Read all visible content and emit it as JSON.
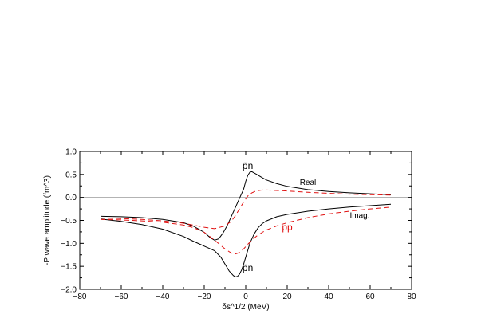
{
  "chart_data": {
    "type": "line",
    "title": "",
    "xlabel": "δs^1/2 (MeV)",
    "ylabel": "-P wave amplitude (fm^3)",
    "xlim": [
      -80,
      80
    ],
    "ylim": [
      -2.0,
      1.0
    ],
    "x_ticks": [
      -80,
      -60,
      -40,
      -20,
      0,
      20,
      40,
      60,
      80
    ],
    "y_ticks": [
      1.0,
      0.5,
      0.0,
      -0.5,
      -1.0,
      -1.5,
      -2.0
    ],
    "x_tick_labels": [
      "−80",
      "−60",
      "−40",
      "−20",
      "0",
      "20",
      "40",
      "60",
      "80"
    ],
    "y_tick_labels": [
      "1.0",
      "0.5",
      "0.0",
      "−0.5",
      "−1.0",
      "−1.5",
      "−2.0"
    ],
    "grid": false,
    "zero_line": true,
    "series": [
      {
        "group": "p̄n",
        "part": "Real",
        "color": "#000000",
        "dash": "solid",
        "x": [
          -70,
          -60,
          -50,
          -40,
          -30,
          -25,
          -20,
          -17,
          -15,
          -13,
          -11,
          -9,
          -7,
          -5,
          -3,
          -1,
          0,
          1,
          2,
          3,
          5,
          8,
          10,
          15,
          20,
          30,
          40,
          50,
          60,
          70
        ],
        "y": [
          -0.41,
          -0.42,
          -0.44,
          -0.48,
          -0.55,
          -0.63,
          -0.76,
          -0.88,
          -0.93,
          -0.9,
          -0.78,
          -0.62,
          -0.42,
          -0.22,
          -0.02,
          0.18,
          0.35,
          0.48,
          0.55,
          0.56,
          0.51,
          0.43,
          0.38,
          0.3,
          0.24,
          0.17,
          0.13,
          0.1,
          0.08,
          0.06
        ]
      },
      {
        "group": "p̄n",
        "part": "Imag.",
        "color": "#000000",
        "dash": "solid",
        "x": [
          -70,
          -60,
          -50,
          -40,
          -30,
          -25,
          -20,
          -15,
          -12,
          -10,
          -8,
          -6,
          -5,
          -4,
          -3,
          -2,
          -1,
          0,
          1,
          2,
          4,
          6,
          8,
          10,
          15,
          20,
          30,
          40,
          50,
          60,
          70
        ],
        "y": [
          -0.47,
          -0.52,
          -0.59,
          -0.69,
          -0.85,
          -0.96,
          -1.06,
          -1.16,
          -1.3,
          -1.45,
          -1.6,
          -1.7,
          -1.73,
          -1.72,
          -1.67,
          -1.58,
          -1.45,
          -1.3,
          -1.15,
          -1.0,
          -0.8,
          -0.66,
          -0.57,
          -0.51,
          -0.42,
          -0.37,
          -0.3,
          -0.25,
          -0.21,
          -0.18,
          -0.15
        ]
      },
      {
        "group": "pp",
        "part": "Real",
        "color": "#e01010",
        "dash": "dashed",
        "x": [
          -70,
          -60,
          -50,
          -40,
          -30,
          -20,
          -15,
          -10,
          -7,
          -5,
          -3,
          -1,
          1,
          3,
          5,
          8,
          10,
          15,
          20,
          30,
          40,
          50,
          60,
          70
        ],
        "y": [
          -0.45,
          -0.46,
          -0.48,
          -0.51,
          -0.56,
          -0.65,
          -0.68,
          -0.62,
          -0.52,
          -0.4,
          -0.25,
          -0.1,
          0.03,
          0.1,
          0.14,
          0.16,
          0.16,
          0.15,
          0.14,
          0.11,
          0.09,
          0.07,
          0.06,
          0.05
        ]
      },
      {
        "group": "pp",
        "part": "Imag.",
        "color": "#e01010",
        "dash": "dashed",
        "x": [
          -70,
          -60,
          -50,
          -40,
          -30,
          -25,
          -20,
          -15,
          -10,
          -7,
          -5,
          -3,
          -1,
          1,
          3,
          5,
          8,
          10,
          15,
          20,
          30,
          40,
          50,
          60,
          70
        ],
        "y": [
          -0.48,
          -0.49,
          -0.51,
          -0.54,
          -0.6,
          -0.66,
          -0.76,
          -0.93,
          -1.12,
          -1.21,
          -1.23,
          -1.2,
          -1.12,
          -1.02,
          -0.93,
          -0.85,
          -0.76,
          -0.71,
          -0.62,
          -0.55,
          -0.44,
          -0.36,
          -0.3,
          -0.25,
          -0.21
        ]
      }
    ],
    "annotations": [
      {
        "text": "p̄n",
        "x": 1,
        "y": 0.62,
        "color": "#000000"
      },
      {
        "text": "Real",
        "x": 30,
        "y": 0.27,
        "color": "#000000"
      },
      {
        "text": "pp",
        "x": 20,
        "y": -0.72,
        "color": "#e01010"
      },
      {
        "text": "Imag.",
        "x": 55,
        "y": -0.45,
        "color": "#000000"
      },
      {
        "text": "p̄n",
        "x": 1,
        "y": -1.6,
        "color": "#000000"
      }
    ]
  }
}
